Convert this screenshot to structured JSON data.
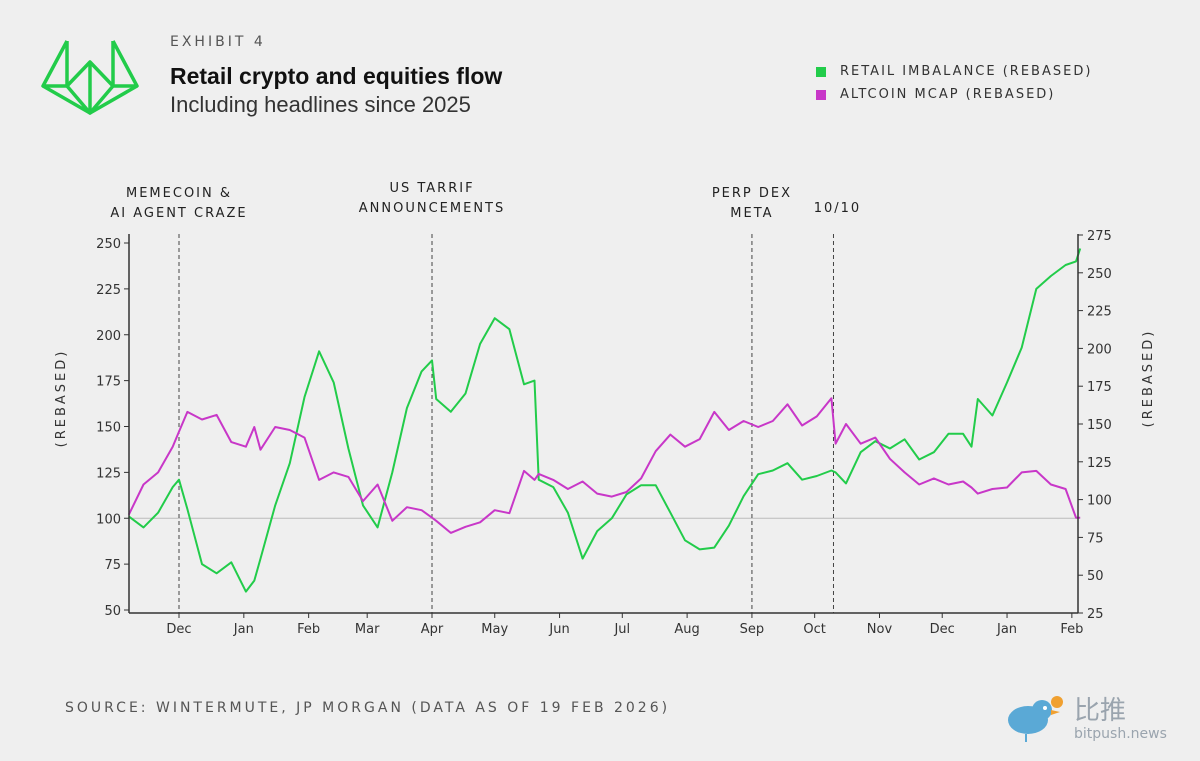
{
  "header": {
    "exhibit": "EXHIBIT 4",
    "title": "Retail crypto and equities flow",
    "subtitle": "Including headlines since 2025"
  },
  "source": "SOURCE: WINTERMUTE, JP MORGAN (DATA AS OF 19 FEB 2026)",
  "watermark": {
    "cn": "比推",
    "en": "bitpush.news"
  },
  "logo": {
    "icon": "wintermute-logo-icon",
    "color": "#22cc4a"
  },
  "chart_data": {
    "type": "line",
    "title": "Retail crypto and equities flow",
    "legend_position": "top-right",
    "x_ticks": [
      "Dec",
      "Jan",
      "Feb",
      "Mar",
      "Apr",
      "May",
      "Jun",
      "Jul",
      "Aug",
      "Sep",
      "Oct",
      "Nov",
      "Dec",
      "Jan",
      "Feb"
    ],
    "x_tick_dates": [
      "2024-12-01",
      "2025-01-01",
      "2025-02-01",
      "2025-03-01",
      "2025-04-01",
      "2025-05-01",
      "2025-06-01",
      "2025-07-01",
      "2025-08-01",
      "2025-09-01",
      "2025-10-01",
      "2025-11-01",
      "2025-12-01",
      "2026-01-01",
      "2026-02-01"
    ],
    "x_range": [
      "2024-11-07",
      "2026-02-05"
    ],
    "y_left": {
      "label": "(REBASED)",
      "ticks": [
        50,
        75,
        100,
        125,
        150,
        175,
        200,
        225,
        250
      ],
      "range": [
        48,
        256
      ]
    },
    "y_right": {
      "label": "(REBASED)",
      "ticks": [
        25,
        50,
        75,
        100,
        125,
        150,
        175,
        200,
        225,
        250,
        275
      ],
      "range": [
        25,
        277
      ]
    },
    "reference_line": {
      "axis": "left",
      "value": 100,
      "color": "#bbbbbb"
    },
    "annotations": [
      {
        "date": "2024-12-01",
        "lines": [
          "MEMECOIN &",
          "AI AGENT CRAZE"
        ]
      },
      {
        "date": "2025-04-01",
        "lines": [
          "US TARRIF",
          "ANNOUNCEMENTS"
        ]
      },
      {
        "date": "2025-09-01",
        "lines": [
          "PERP DEX",
          "META"
        ]
      },
      {
        "date": "2025-10-10",
        "lines": [
          "10/10"
        ]
      }
    ],
    "dates": [
      "2024-11-07",
      "2024-11-14",
      "2024-11-21",
      "2024-11-28",
      "2024-12-01",
      "2024-12-05",
      "2024-12-12",
      "2024-12-19",
      "2024-12-26",
      "2025-01-02",
      "2025-01-06",
      "2025-01-09",
      "2025-01-16",
      "2025-01-23",
      "2025-01-30",
      "2025-02-06",
      "2025-02-13",
      "2025-02-20",
      "2025-02-27",
      "2025-03-06",
      "2025-03-13",
      "2025-03-20",
      "2025-03-27",
      "2025-04-01",
      "2025-04-03",
      "2025-04-10",
      "2025-04-17",
      "2025-04-24",
      "2025-05-01",
      "2025-05-08",
      "2025-05-15",
      "2025-05-20",
      "2025-05-22",
      "2025-05-29",
      "2025-06-05",
      "2025-06-12",
      "2025-06-19",
      "2025-06-26",
      "2025-07-03",
      "2025-07-10",
      "2025-07-17",
      "2025-07-24",
      "2025-07-31",
      "2025-08-07",
      "2025-08-14",
      "2025-08-21",
      "2025-08-28",
      "2025-09-04",
      "2025-09-11",
      "2025-09-18",
      "2025-09-25",
      "2025-10-02",
      "2025-10-09",
      "2025-10-11",
      "2025-10-16",
      "2025-10-23",
      "2025-10-30",
      "2025-11-06",
      "2025-11-13",
      "2025-11-20",
      "2025-11-27",
      "2025-12-04",
      "2025-12-11",
      "2025-12-15",
      "2025-12-18",
      "2025-12-25",
      "2026-01-01",
      "2026-01-08",
      "2026-01-15",
      "2026-01-22",
      "2026-01-29",
      "2026-02-03",
      "2026-02-05"
    ],
    "series": [
      {
        "name": "RETAIL IMBALANCE (REBASED)",
        "axis": "left",
        "color": "#22cc4a",
        "values": [
          101,
          95,
          103,
          117,
          121,
          105,
          75,
          70,
          76,
          60,
          66,
          78,
          107,
          130,
          166,
          191,
          174,
          138,
          107,
          95,
          125,
          160,
          180,
          186,
          165,
          158,
          168,
          195,
          209,
          203,
          173,
          175,
          121,
          117,
          103,
          78,
          93,
          100,
          113,
          118,
          118,
          103,
          88,
          83,
          84,
          96,
          112,
          124,
          126,
          130,
          121,
          123,
          126,
          125,
          119,
          136,
          142,
          138,
          143,
          132,
          136,
          146,
          146,
          139,
          165,
          156,
          174,
          193,
          225,
          232,
          238,
          240,
          247
        ]
      },
      {
        "name": "ALTCOIN MCAP (REBASED)",
        "axis": "right",
        "color": "#c837c8",
        "values": [
          90,
          110,
          118,
          135,
          145,
          158,
          153,
          156,
          138,
          135,
          148,
          133,
          148,
          146,
          141,
          113,
          118,
          115,
          99,
          110,
          86,
          95,
          93,
          88,
          86,
          78,
          82,
          85,
          93,
          91,
          119,
          113,
          117,
          113,
          107,
          112,
          104,
          102,
          105,
          114,
          132,
          143,
          135,
          140,
          158,
          146,
          152,
          148,
          152,
          163,
          149,
          155,
          167,
          137,
          150,
          137,
          141,
          127,
          118,
          110,
          114,
          110,
          112,
          108,
          104,
          107,
          108,
          118,
          119,
          110,
          107,
          88,
          88
        ]
      }
    ]
  }
}
